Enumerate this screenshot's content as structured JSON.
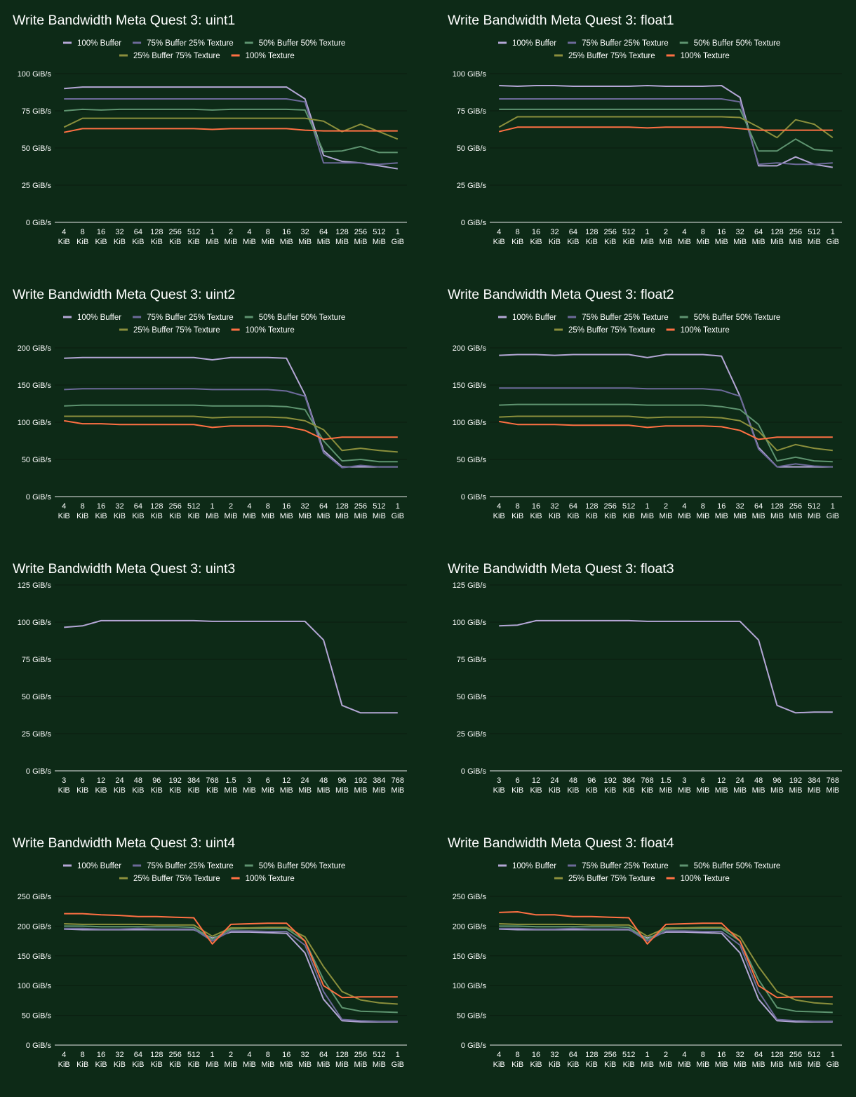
{
  "colors": {
    "background": "#0d2a17",
    "series": {
      "100% Buffer": "#b4a7d6",
      "75% Buffer 25% Texture": "#6d6a9a",
      "50% Buffer 50% Texture": "#5e9470",
      "25% Buffer 75% Texture": "#8b8f3c",
      "100% Texture": "#ff7043"
    }
  },
  "chart_data": [
    {
      "type": "line",
      "title": "Write Bandwidth Meta Quest 3: uint1",
      "legend": "top",
      "grid": true,
      "ylim": [
        0,
        100
      ],
      "yticks": [
        "0 GiB/s",
        "25 GiB/s",
        "50 GiB/s",
        "75 GiB/s",
        "100 GiB/s"
      ],
      "categories": [
        "4 KiB",
        "8 KiB",
        "16 KiB",
        "32 KiB",
        "64 KiB",
        "128 KiB",
        "256 KiB",
        "512 KiB",
        "1 MiB",
        "2 MiB",
        "4 MiB",
        "8 MiB",
        "16 MiB",
        "32 MiB",
        "64 MiB",
        "128 MiB",
        "256 MiB",
        "512 MiB",
        "1 GiB"
      ],
      "series": [
        {
          "name": "100% Buffer",
          "values": [
            90,
            91,
            91,
            91,
            91,
            91,
            91,
            91,
            91,
            91,
            91,
            91,
            91,
            83,
            45,
            41,
            40,
            38,
            36
          ]
        },
        {
          "name": "75% Buffer 25% Texture",
          "values": [
            83,
            83,
            83,
            83,
            83,
            83,
            83,
            83,
            83,
            83,
            83,
            83,
            83,
            81,
            40,
            40,
            40,
            39,
            40
          ]
        },
        {
          "name": "50% Buffer 50% Texture",
          "values": [
            75,
            76,
            75.5,
            76,
            76,
            76,
            76,
            76,
            75.5,
            76,
            76,
            76,
            76,
            75.5,
            47.5,
            48,
            51,
            47,
            47
          ]
        },
        {
          "name": "25% Buffer 75% Texture",
          "values": [
            64,
            70,
            70,
            70,
            70,
            70,
            70,
            70,
            70,
            70,
            70,
            70,
            70,
            70,
            68,
            61,
            66,
            61,
            56
          ]
        },
        {
          "name": "100% Texture",
          "values": [
            60.5,
            63,
            63,
            63,
            63,
            63,
            63,
            63,
            62.5,
            63,
            63,
            63,
            63,
            62,
            61.5,
            61.5,
            61.5,
            61.5,
            61.5
          ]
        }
      ]
    },
    {
      "type": "line",
      "title": "Write Bandwidth Meta Quest 3: float1",
      "legend": "top",
      "grid": true,
      "ylim": [
        0,
        100
      ],
      "yticks": [
        "0 GiB/s",
        "25 GiB/s",
        "50 GiB/s",
        "75 GiB/s",
        "100 GiB/s"
      ],
      "categories": [
        "4 KiB",
        "8 KiB",
        "16 KiB",
        "32 KiB",
        "64 KiB",
        "128 KiB",
        "256 KiB",
        "512 KiB",
        "1 MiB",
        "2 MiB",
        "4 MiB",
        "8 MiB",
        "16 MiB",
        "32 MiB",
        "64 MiB",
        "128 MiB",
        "256 MiB",
        "512 MiB",
        "1 GiB"
      ],
      "series": [
        {
          "name": "100% Buffer",
          "values": [
            92,
            91.5,
            92,
            92,
            91.5,
            91.5,
            91.5,
            91.5,
            92,
            91.5,
            91.5,
            91.5,
            92,
            84,
            38,
            38,
            44,
            39,
            37
          ]
        },
        {
          "name": "75% Buffer 25% Texture",
          "values": [
            83,
            83,
            83,
            83,
            83,
            83,
            83,
            83,
            83,
            83,
            83,
            83,
            83,
            81,
            39,
            40,
            39,
            39,
            40
          ]
        },
        {
          "name": "50% Buffer 50% Texture",
          "values": [
            76,
            76,
            76,
            76,
            76,
            76,
            76,
            76,
            76,
            76,
            76,
            76,
            76,
            76,
            48,
            48,
            56,
            49,
            48
          ]
        },
        {
          "name": "25% Buffer 75% Texture",
          "values": [
            64,
            71,
            71,
            71,
            71,
            71,
            71,
            71,
            71,
            71,
            71,
            71,
            71,
            70.5,
            64,
            57,
            69,
            66,
            57
          ]
        },
        {
          "name": "100% Texture",
          "values": [
            61,
            64,
            64,
            64,
            64,
            64,
            64,
            64,
            63.5,
            64,
            64,
            64,
            64,
            63,
            62,
            62,
            62,
            62,
            62
          ]
        }
      ]
    },
    {
      "type": "line",
      "title": "Write Bandwidth Meta Quest 3: uint2",
      "legend": "top",
      "grid": true,
      "ylim": [
        0,
        200
      ],
      "yticks": [
        "0 GiB/s",
        "50 GiB/s",
        "100 GiB/s",
        "150 GiB/s",
        "200 GiB/s"
      ],
      "categories": [
        "4 KiB",
        "8 KiB",
        "16 KiB",
        "32 KiB",
        "64 KiB",
        "128 KiB",
        "256 KiB",
        "512 KiB",
        "1 MiB",
        "2 MiB",
        "4 MiB",
        "8 MiB",
        "16 MiB",
        "32 MiB",
        "64 MiB",
        "128 MiB",
        "256 MiB",
        "512 MiB",
        "1 GiB"
      ],
      "series": [
        {
          "name": "100% Buffer",
          "values": [
            186,
            187,
            187,
            187,
            187,
            187,
            187,
            187,
            184,
            187,
            187,
            187,
            186,
            137,
            62,
            40,
            40,
            40,
            40
          ]
        },
        {
          "name": "75% Buffer 25% Texture",
          "values": [
            144,
            145,
            145,
            145,
            145,
            145,
            145,
            145,
            144,
            144,
            144,
            144,
            142,
            135,
            59,
            39,
            42,
            40,
            40
          ]
        },
        {
          "name": "50% Buffer 50% Texture",
          "values": [
            122,
            123,
            123,
            123,
            123,
            123,
            123,
            123,
            122,
            122,
            122,
            122,
            121,
            117,
            75,
            48,
            50,
            47,
            47
          ]
        },
        {
          "name": "25% Buffer 75% Texture",
          "values": [
            108,
            108,
            108,
            108,
            108,
            108,
            108,
            108,
            106,
            107,
            107,
            107,
            106,
            102,
            90,
            62,
            65,
            62,
            60
          ]
        },
        {
          "name": "100% Texture",
          "values": [
            102,
            98,
            98,
            97,
            97,
            97,
            97,
            97,
            93,
            95,
            95,
            95,
            94,
            89,
            77,
            80,
            80,
            80,
            80
          ]
        }
      ]
    },
    {
      "type": "line",
      "title": "Write Bandwidth Meta Quest 3: float2",
      "legend": "top",
      "grid": true,
      "ylim": [
        0,
        200
      ],
      "yticks": [
        "0 GiB/s",
        "50 GiB/s",
        "100 GiB/s",
        "150 GiB/s",
        "200 GiB/s"
      ],
      "categories": [
        "4 KiB",
        "8 KiB",
        "16 KiB",
        "32 KiB",
        "64 KiB",
        "128 KiB",
        "256 KiB",
        "512 KiB",
        "1 MiB",
        "2 MiB",
        "4 MiB",
        "8 MiB",
        "16 MiB",
        "32 MiB",
        "64 MiB",
        "128 MiB",
        "256 MiB",
        "512 MiB",
        "1 GiB"
      ],
      "series": [
        {
          "name": "100% Buffer",
          "values": [
            190,
            191,
            191,
            190,
            191,
            191,
            191,
            191,
            187,
            191,
            191,
            191,
            189,
            135,
            66,
            40,
            40,
            40,
            40
          ]
        },
        {
          "name": "75% Buffer 25% Texture",
          "values": [
            146,
            146,
            146,
            146,
            146,
            146,
            146,
            146,
            145,
            145,
            145,
            145,
            143,
            135,
            64,
            40,
            44,
            41,
            40
          ]
        },
        {
          "name": "50% Buffer 50% Texture",
          "values": [
            123,
            124,
            124,
            124,
            124,
            124,
            124,
            124,
            123,
            123,
            123,
            123,
            121,
            117,
            97,
            48,
            53,
            48,
            47
          ]
        },
        {
          "name": "25% Buffer 75% Texture",
          "values": [
            107,
            108,
            108,
            108,
            108,
            108,
            108,
            108,
            106,
            107,
            107,
            107,
            106,
            102,
            88,
            62,
            70,
            65,
            62
          ]
        },
        {
          "name": "100% Texture",
          "values": [
            101,
            97,
            97,
            97,
            96,
            96,
            96,
            96,
            93,
            95,
            95,
            95,
            94,
            89,
            77,
            80,
            80,
            80,
            80
          ]
        }
      ]
    },
    {
      "type": "line",
      "title": "Write Bandwidth Meta Quest 3: uint3",
      "legend": "none",
      "grid": true,
      "ylim": [
        0,
        125
      ],
      "yticks": [
        "0 GiB/s",
        "25 GiB/s",
        "50 GiB/s",
        "75 GiB/s",
        "100 GiB/s",
        "125 GiB/s"
      ],
      "categories": [
        "3 KiB",
        "6 KiB",
        "12 KiB",
        "24 KiB",
        "48 KiB",
        "96 KiB",
        "192 KiB",
        "384 KiB",
        "768 KiB",
        "1.5 MiB",
        "3 MiB",
        "6 MiB",
        "12 MiB",
        "24 MiB",
        "48 MiB",
        "96 MiB",
        "192 MiB",
        "384 MiB",
        "768 MiB"
      ],
      "series": [
        {
          "values": [
            96.5,
            97.5,
            101,
            101,
            101,
            101,
            101,
            101,
            100.5,
            100.5,
            100.5,
            100.5,
            100.5,
            100.5,
            88,
            44,
            39,
            39,
            39
          ]
        }
      ]
    },
    {
      "type": "line",
      "title": "Write Bandwidth Meta Quest 3: float3",
      "legend": "none",
      "grid": true,
      "ylim": [
        0,
        125
      ],
      "yticks": [
        "0 GiB/s",
        "25 GiB/s",
        "50 GiB/s",
        "75 GiB/s",
        "100 GiB/s",
        "125 GiB/s"
      ],
      "categories": [
        "3 KiB",
        "6 KiB",
        "12 KiB",
        "24 KiB",
        "48 KiB",
        "96 KiB",
        "192 KiB",
        "384 KiB",
        "768 KiB",
        "1.5 MiB",
        "3 MiB",
        "6 MiB",
        "12 MiB",
        "24 MiB",
        "48 MiB",
        "96 MiB",
        "192 MiB",
        "384 MiB",
        "768 MiB"
      ],
      "series": [
        {
          "values": [
            97.5,
            98,
            101,
            101,
            101,
            101,
            101,
            101,
            100.5,
            100.5,
            100.5,
            100.5,
            100.5,
            100.5,
            88,
            44,
            39,
            39.5,
            39.5
          ]
        }
      ]
    },
    {
      "type": "line",
      "title": "Write Bandwidth Meta Quest 3: uint4",
      "legend": "top",
      "grid": true,
      "ylim": [
        0,
        250
      ],
      "yticks": [
        "0 GiB/s",
        "50 GiB/s",
        "100 GiB/s",
        "150 GiB/s",
        "200 GiB/s",
        "250 GiB/s"
      ],
      "categories": [
        "4 KiB",
        "8 KiB",
        "16 KiB",
        "32 KiB",
        "64 KiB",
        "128 KiB",
        "256 KiB",
        "512 KiB",
        "1 MiB",
        "2 MiB",
        "4 MiB",
        "8 MiB",
        "16 MiB",
        "32 MiB",
        "64 MiB",
        "128 MiB",
        "256 MiB",
        "512 MiB",
        "1 GiB"
      ],
      "series": [
        {
          "name": "100% Buffer",
          "values": [
            195,
            194,
            194,
            194,
            194,
            194,
            194,
            194,
            180,
            190,
            190,
            189,
            188,
            155,
            77,
            41,
            39,
            39,
            39
          ]
        },
        {
          "name": "75% Buffer 25% Texture",
          "values": [
            196,
            196,
            195,
            195,
            196,
            195,
            195,
            195,
            175,
            192,
            192,
            191,
            191,
            168,
            90,
            43,
            41,
            40,
            40
          ]
        },
        {
          "name": "50% Buffer 50% Texture",
          "values": [
            200,
            200,
            199,
            199,
            199,
            199,
            199,
            198,
            178,
            195,
            196,
            196,
            196,
            175,
            110,
            63,
            57,
            56,
            55
          ]
        },
        {
          "name": "25% Buffer 75% Texture",
          "values": [
            204,
            203,
            203,
            203,
            203,
            202,
            202,
            202,
            183,
            197,
            197,
            198,
            198,
            182,
            132,
            90,
            76,
            71,
            69
          ]
        },
        {
          "name": "100% Texture",
          "values": [
            221,
            221,
            219,
            218,
            216,
            216,
            215,
            214,
            170,
            203,
            204,
            205,
            205,
            175,
            100,
            80,
            81,
            81,
            81
          ]
        }
      ]
    },
    {
      "type": "line",
      "title": "Write Bandwidth Meta Quest 3: float4",
      "legend": "top",
      "grid": true,
      "ylim": [
        0,
        250
      ],
      "yticks": [
        "0 GiB/s",
        "50 GiB/s",
        "100 GiB/s",
        "150 GiB/s",
        "200 GiB/s",
        "250 GiB/s"
      ],
      "categories": [
        "4 KiB",
        "8 KiB",
        "16 KiB",
        "32 KiB",
        "64 KiB",
        "128 KiB",
        "256 KiB",
        "512 KiB",
        "1 MiB",
        "2 MiB",
        "4 MiB",
        "8 MiB",
        "16 MiB",
        "32 MiB",
        "64 MiB",
        "128 MiB",
        "256 MiB",
        "512 MiB",
        "1 GiB"
      ],
      "series": [
        {
          "name": "100% Buffer",
          "values": [
            195,
            194,
            194,
            194,
            194,
            194,
            194,
            194,
            180,
            190,
            190,
            189,
            188,
            155,
            77,
            41,
            39,
            39,
            39
          ]
        },
        {
          "name": "75% Buffer 25% Texture",
          "values": [
            196,
            196,
            195,
            195,
            196,
            195,
            195,
            195,
            175,
            192,
            192,
            191,
            191,
            168,
            90,
            43,
            41,
            40,
            40
          ]
        },
        {
          "name": "50% Buffer 50% Texture",
          "values": [
            200,
            200,
            199,
            199,
            199,
            199,
            199,
            198,
            178,
            195,
            196,
            196,
            196,
            175,
            110,
            63,
            57,
            56,
            55
          ]
        },
        {
          "name": "25% Buffer 75% Texture",
          "values": [
            204,
            203,
            203,
            203,
            203,
            202,
            202,
            202,
            183,
            197,
            197,
            198,
            198,
            182,
            132,
            90,
            76,
            71,
            69
          ]
        },
        {
          "name": "100% Texture",
          "values": [
            223,
            224,
            219,
            219,
            216,
            216,
            215,
            214,
            170,
            203,
            204,
            205,
            205,
            175,
            100,
            80,
            81,
            81,
            81
          ]
        }
      ]
    }
  ]
}
